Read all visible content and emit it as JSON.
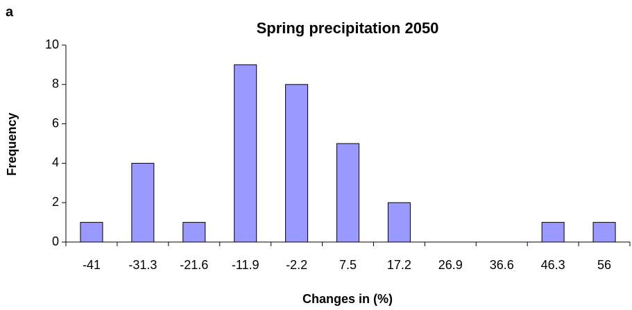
{
  "panel_label": "a",
  "chart_data": {
    "type": "bar",
    "title": "Spring precipitation 2050",
    "x_label": "Changes in (%)",
    "y_label": "Frequency",
    "categories": [
      "-41",
      "-31.3",
      "-21.6",
      "-11.9",
      "-2.2",
      "7.5",
      "17.2",
      "26.9",
      "36.6",
      "46.3",
      "56"
    ],
    "values": [
      1,
      4,
      1,
      9,
      8,
      5,
      2,
      0,
      0,
      1,
      1
    ],
    "color": "#9999ff",
    "ylim": [
      0,
      10
    ],
    "yticks": [
      0,
      2,
      4,
      6,
      8,
      10
    ],
    "grid": false
  }
}
